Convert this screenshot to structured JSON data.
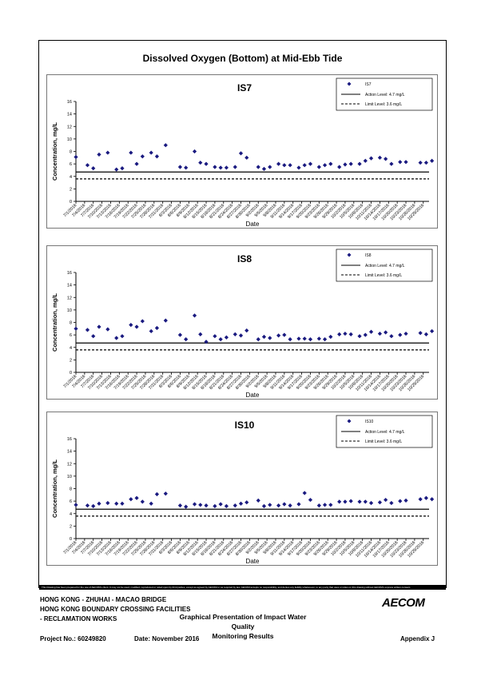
{
  "main_title": "Dissolved Oxygen (Bottom) at Mid-Ebb Tide",
  "colors": {
    "marker": "#1a1a80",
    "line": "#000000"
  },
  "chart_data": [
    {
      "type": "scatter",
      "title": "IS7",
      "xlabel": "Date",
      "ylabel": "Concentration, mg/L",
      "ylim": [
        0,
        16
      ],
      "yticks": [
        0,
        2,
        4,
        6,
        8,
        10,
        12,
        14,
        16
      ],
      "xlim": [
        "2016-07-01",
        "2016-10-31"
      ],
      "xticks": [
        "7/1/2016",
        "7/4/2016",
        "7/7/2016",
        "7/10/2016",
        "7/13/2016",
        "7/16/2016",
        "7/19/2016",
        "7/22/2016",
        "7/25/2016",
        "7/28/2016",
        "7/31/2016",
        "8/3/2016",
        "8/6/2016",
        "8/9/2016",
        "8/12/2016",
        "8/15/2016",
        "8/18/2016",
        "8/21/2016",
        "8/24/2016",
        "8/27/2016",
        "8/30/2016",
        "9/2/2016",
        "9/5/2016",
        "9/8/2016",
        "9/11/2016",
        "9/14/2016",
        "9/17/2016",
        "9/20/2016",
        "9/23/2016",
        "9/26/2016",
        "9/29/2016",
        "10/2/2016",
        "10/5/2016",
        "10/8/2016",
        "10/11/2016",
        "10/14/2016",
        "10/17/2016",
        "10/20/2016",
        "10/23/2016",
        "10/26/2016",
        "10/29/2016"
      ],
      "legend": {
        "position": "top-right",
        "entries": [
          "IS7",
          "Action Level: 4.7 mg/L",
          "Limit Level: 3.6 mg/L"
        ]
      },
      "action_level": 4.7,
      "limit_level": 3.6,
      "series": [
        {
          "name": "IS7",
          "points": [
            [
              "2016-07-01",
              7.1
            ],
            [
              "2016-07-05",
              5.8
            ],
            [
              "2016-07-07",
              5.3
            ],
            [
              "2016-07-09",
              7.5
            ],
            [
              "2016-07-12",
              7.8
            ],
            [
              "2016-07-15",
              5.1
            ],
            [
              "2016-07-17",
              5.3
            ],
            [
              "2016-07-20",
              7.8
            ],
            [
              "2016-07-22",
              6.0
            ],
            [
              "2016-07-24",
              7.2
            ],
            [
              "2016-07-27",
              7.8
            ],
            [
              "2016-07-29",
              7.2
            ],
            [
              "2016-08-01",
              9.0
            ],
            [
              "2016-08-06",
              5.5
            ],
            [
              "2016-08-08",
              5.4
            ],
            [
              "2016-08-11",
              8.0
            ],
            [
              "2016-08-13",
              6.2
            ],
            [
              "2016-08-15",
              6.0
            ],
            [
              "2016-08-18",
              5.5
            ],
            [
              "2016-08-20",
              5.4
            ],
            [
              "2016-08-22",
              5.4
            ],
            [
              "2016-08-25",
              5.5
            ],
            [
              "2016-08-27",
              7.7
            ],
            [
              "2016-08-29",
              7.0
            ],
            [
              "2016-09-02",
              5.5
            ],
            [
              "2016-09-04",
              5.2
            ],
            [
              "2016-09-06",
              5.5
            ],
            [
              "2016-09-09",
              6.0
            ],
            [
              "2016-09-11",
              5.8
            ],
            [
              "2016-09-13",
              5.8
            ],
            [
              "2016-09-16",
              5.4
            ],
            [
              "2016-09-18",
              5.8
            ],
            [
              "2016-09-20",
              6.0
            ],
            [
              "2016-09-23",
              5.5
            ],
            [
              "2016-09-25",
              5.8
            ],
            [
              "2016-09-27",
              6.0
            ],
            [
              "2016-09-30",
              5.5
            ],
            [
              "2016-10-02",
              5.9
            ],
            [
              "2016-10-04",
              6.0
            ],
            [
              "2016-10-07",
              6.0
            ],
            [
              "2016-10-09",
              6.5
            ],
            [
              "2016-10-11",
              6.9
            ],
            [
              "2016-10-14",
              7.0
            ],
            [
              "2016-10-16",
              6.8
            ],
            [
              "2016-10-18",
              6.0
            ],
            [
              "2016-10-21",
              6.3
            ],
            [
              "2016-10-23",
              6.3
            ],
            [
              "2016-10-28",
              6.2
            ],
            [
              "2016-10-30",
              6.2
            ],
            [
              "2016-11-01",
              6.5
            ],
            [
              "2016-11-04",
              7.3
            ]
          ]
        }
      ]
    },
    {
      "type": "scatter",
      "title": "IS8",
      "xlabel": "Date",
      "ylabel": "Concentration, mg/L",
      "ylim": [
        0,
        16
      ],
      "yticks": [
        0,
        2,
        4,
        6,
        8,
        10,
        12,
        14,
        16
      ],
      "xlim": [
        "2016-07-01",
        "2016-10-31"
      ],
      "xticks": [
        "7/1/2016",
        "7/4/2016",
        "7/7/2016",
        "7/10/2016",
        "7/13/2016",
        "7/16/2016",
        "7/19/2016",
        "7/22/2016",
        "7/25/2016",
        "7/28/2016",
        "7/31/2016",
        "8/3/2016",
        "8/6/2016",
        "8/9/2016",
        "8/12/2016",
        "8/15/2016",
        "8/18/2016",
        "8/21/2016",
        "8/24/2016",
        "8/27/2016",
        "8/30/2016",
        "9/2/2016",
        "9/5/2016",
        "9/8/2016",
        "9/11/2016",
        "9/14/2016",
        "9/17/2016",
        "9/20/2016",
        "9/23/2016",
        "9/26/2016",
        "9/29/2016",
        "10/2/2016",
        "10/5/2016",
        "10/8/2016",
        "10/11/2016",
        "10/14/2016",
        "10/17/2016",
        "10/20/2016",
        "10/23/2016",
        "10/26/2016",
        "10/29/2016"
      ],
      "legend": {
        "position": "top-right",
        "entries": [
          "IS8",
          "Action Level: 4.7 mg/L",
          "Limit Level: 3.6 mg/L"
        ]
      },
      "action_level": 4.7,
      "limit_level": 3.6,
      "series": [
        {
          "name": "IS8",
          "points": [
            [
              "2016-07-01",
              7.0
            ],
            [
              "2016-07-05",
              6.8
            ],
            [
              "2016-07-07",
              5.8
            ],
            [
              "2016-07-09",
              7.3
            ],
            [
              "2016-07-12",
              6.9
            ],
            [
              "2016-07-15",
              5.5
            ],
            [
              "2016-07-17",
              5.8
            ],
            [
              "2016-07-20",
              7.6
            ],
            [
              "2016-07-22",
              7.3
            ],
            [
              "2016-07-24",
              8.2
            ],
            [
              "2016-07-27",
              6.6
            ],
            [
              "2016-07-29",
              7.1
            ],
            [
              "2016-08-01",
              8.3
            ],
            [
              "2016-08-06",
              6.0
            ],
            [
              "2016-08-08",
              5.3
            ],
            [
              "2016-08-11",
              9.1
            ],
            [
              "2016-08-13",
              6.1
            ],
            [
              "2016-08-15",
              4.9
            ],
            [
              "2016-08-18",
              5.8
            ],
            [
              "2016-08-20",
              5.3
            ],
            [
              "2016-08-22",
              5.6
            ],
            [
              "2016-08-25",
              6.1
            ],
            [
              "2016-08-27",
              5.9
            ],
            [
              "2016-08-29",
              6.7
            ],
            [
              "2016-09-02",
              5.3
            ],
            [
              "2016-09-04",
              5.7
            ],
            [
              "2016-09-06",
              5.5
            ],
            [
              "2016-09-09",
              5.9
            ],
            [
              "2016-09-11",
              6.0
            ],
            [
              "2016-09-13",
              5.3
            ],
            [
              "2016-09-16",
              5.4
            ],
            [
              "2016-09-18",
              5.4
            ],
            [
              "2016-09-20",
              5.3
            ],
            [
              "2016-09-23",
              5.4
            ],
            [
              "2016-09-25",
              5.3
            ],
            [
              "2016-09-27",
              5.7
            ],
            [
              "2016-09-30",
              6.1
            ],
            [
              "2016-10-02",
              6.2
            ],
            [
              "2016-10-04",
              6.1
            ],
            [
              "2016-10-07",
              5.8
            ],
            [
              "2016-10-09",
              6.0
            ],
            [
              "2016-10-11",
              6.5
            ],
            [
              "2016-10-14",
              6.2
            ],
            [
              "2016-10-16",
              6.4
            ],
            [
              "2016-10-18",
              5.8
            ],
            [
              "2016-10-21",
              6.0
            ],
            [
              "2016-10-23",
              6.2
            ],
            [
              "2016-10-28",
              6.3
            ],
            [
              "2016-10-30",
              6.1
            ],
            [
              "2016-11-01",
              6.6
            ],
            [
              "2016-11-04",
              6.6
            ]
          ]
        }
      ]
    },
    {
      "type": "scatter",
      "title": "IS10",
      "xlabel": "Date",
      "ylabel": "Concentration, mg/L",
      "ylim": [
        0,
        16
      ],
      "yticks": [
        0,
        2,
        4,
        6,
        8,
        10,
        12,
        14,
        16
      ],
      "xlim": [
        "2016-07-01",
        "2016-10-31"
      ],
      "xticks": [
        "7/1/2016",
        "7/4/2016",
        "7/7/2016",
        "7/10/2016",
        "7/13/2016",
        "7/16/2016",
        "7/19/2016",
        "7/22/2016",
        "7/25/2016",
        "7/28/2016",
        "7/31/2016",
        "8/3/2016",
        "8/6/2016",
        "8/9/2016",
        "8/12/2016",
        "8/15/2016",
        "8/18/2016",
        "8/21/2016",
        "8/24/2016",
        "8/27/2016",
        "8/30/2016",
        "9/2/2016",
        "9/5/2016",
        "9/8/2016",
        "9/11/2016",
        "9/14/2016",
        "9/17/2016",
        "9/20/2016",
        "9/23/2016",
        "9/26/2016",
        "9/29/2016",
        "10/2/2016",
        "10/5/2016",
        "10/8/2016",
        "10/11/2016",
        "10/14/2016",
        "10/17/2016",
        "10/20/2016",
        "10/23/2016",
        "10/26/2016",
        "10/29/2016"
      ],
      "legend": {
        "position": "top-right",
        "entries": [
          "IS10",
          "Action Level: 4.7 mg/L",
          "Limit Level: 3.6 mg/L"
        ]
      },
      "action_level": 4.7,
      "limit_level": 3.6,
      "series": [
        {
          "name": "IS10",
          "points": [
            [
              "2016-07-01",
              5.4
            ],
            [
              "2016-07-05",
              5.3
            ],
            [
              "2016-07-07",
              5.2
            ],
            [
              "2016-07-09",
              5.6
            ],
            [
              "2016-07-12",
              5.7
            ],
            [
              "2016-07-15",
              5.6
            ],
            [
              "2016-07-17",
              5.6
            ],
            [
              "2016-07-20",
              6.3
            ],
            [
              "2016-07-22",
              6.5
            ],
            [
              "2016-07-24",
              5.9
            ],
            [
              "2016-07-27",
              5.6
            ],
            [
              "2016-07-29",
              7.1
            ],
            [
              "2016-08-01",
              7.2
            ],
            [
              "2016-08-06",
              5.3
            ],
            [
              "2016-08-08",
              5.1
            ],
            [
              "2016-08-11",
              5.5
            ],
            [
              "2016-08-13",
              5.4
            ],
            [
              "2016-08-15",
              5.3
            ],
            [
              "2016-08-18",
              5.2
            ],
            [
              "2016-08-20",
              5.5
            ],
            [
              "2016-08-22",
              5.2
            ],
            [
              "2016-08-25",
              5.3
            ],
            [
              "2016-08-27",
              5.6
            ],
            [
              "2016-08-29",
              5.8
            ],
            [
              "2016-09-02",
              6.1
            ],
            [
              "2016-09-04",
              5.2
            ],
            [
              "2016-09-06",
              5.4
            ],
            [
              "2016-09-09",
              5.3
            ],
            [
              "2016-09-11",
              5.5
            ],
            [
              "2016-09-13",
              5.3
            ],
            [
              "2016-09-16",
              5.5
            ],
            [
              "2016-09-18",
              7.3
            ],
            [
              "2016-09-20",
              6.2
            ],
            [
              "2016-09-23",
              5.3
            ],
            [
              "2016-09-25",
              5.4
            ],
            [
              "2016-09-27",
              5.4
            ],
            [
              "2016-09-30",
              5.9
            ],
            [
              "2016-10-02",
              5.9
            ],
            [
              "2016-10-04",
              6.0
            ],
            [
              "2016-10-07",
              5.9
            ],
            [
              "2016-10-09",
              5.9
            ],
            [
              "2016-10-11",
              5.7
            ],
            [
              "2016-10-14",
              5.8
            ],
            [
              "2016-10-16",
              6.2
            ],
            [
              "2016-10-18",
              5.7
            ],
            [
              "2016-10-21",
              6.0
            ],
            [
              "2016-10-23",
              6.1
            ],
            [
              "2016-10-28",
              6.3
            ],
            [
              "2016-10-30",
              6.5
            ],
            [
              "2016-11-01",
              6.3
            ],
            [
              "2016-11-04",
              6.1
            ]
          ]
        }
      ]
    }
  ],
  "disclaimer": "This Drawing has been prepared for the use of AECOM's client. It may not be used, modified, reproduced or relied upon by third parties, except as agreed by AECOM or as required by law. AECOM accepts no responsibility, and denies any liability whatsoever, to any party that uses or relies on this drawing without AECOM's express written consent.",
  "footer": {
    "project_line1": "HONG KONG - ZHUHAI - MACAO BRIDGE",
    "project_line2": "HONG KONG BOUNDARY CROSSING FACILITIES",
    "project_line3": "- RECLAMATION WORKS",
    "subtitle_line1": "Graphical Presentation of Impact Water Quality",
    "subtitle_line2": "Monitoring Results",
    "logo": "AECOM",
    "project_no": "Project No.: 60249820",
    "date": "Date: November 2016",
    "appendix": "Appendix J"
  }
}
